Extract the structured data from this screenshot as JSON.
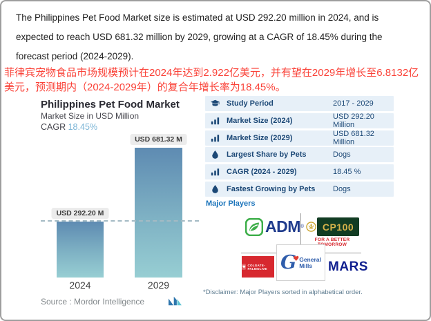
{
  "intro": {
    "en": "The Philippines Pet Food Market size is estimated at USD 292.20 million in 2024, and is expected to reach USD 681.32 million by 2029, growing at a CAGR of 18.45% during the forecast period (2024-2029).",
    "zh": "菲律宾宠物食品市场规模预计在2024年达到2.922亿美元，并有望在2029年增长至6.8132亿美元，预测期内（2024-2029年）的复合年增长率为18.45%。"
  },
  "chart": {
    "title": "Philippines Pet Food Market",
    "subtitle": "Market Size in USD Million",
    "cagr_label": "CAGR",
    "cagr_value": "18.45%",
    "source_label": "Source :  Mordor Intelligence"
  },
  "chart_data": {
    "type": "bar",
    "categories": [
      "2024",
      "2029"
    ],
    "values": [
      292.2,
      681.32
    ],
    "bar_labels": [
      "USD 292.20 M",
      "USD 681.32 M"
    ],
    "title": "Philippines Pet Food Market",
    "ylabel": "Market Size in USD Million",
    "annotations": [
      "dashed reference line at 2024 value"
    ],
    "ylim": [
      0,
      700
    ],
    "grid": false,
    "legend": false
  },
  "stats_table": {
    "rows": [
      {
        "icon": "graduation-cap",
        "label": "Study Period",
        "value": "2017 - 2029"
      },
      {
        "icon": "bar-chart",
        "label": "Market Size (2024)",
        "value": "USD 292.20 Million"
      },
      {
        "icon": "bar-chart",
        "label": "Market Size (2029)",
        "value": "USD 681.32 Million"
      },
      {
        "icon": "droplet",
        "label": "Largest Share by Pets",
        "value": "Dogs"
      },
      {
        "icon": "bar-chart",
        "label": "CAGR (2024 - 2029)",
        "value": "18.45 %"
      },
      {
        "icon": "droplet",
        "label": "Fastest Growing by Pets",
        "value": "Dogs"
      }
    ]
  },
  "major_players": {
    "heading": "Major Players",
    "adm_label": "ADM",
    "cp_label": "CP100",
    "cp_caption": "FOR A BETTER TOMORROW",
    "colgate_label": "COLGATE-PALMOLIVE",
    "gm_label_1": "General",
    "gm_label_2": "Mills",
    "mars_label": "MARS",
    "disclaimer": "*Disclaimer: Major Players sorted in alphabetical order."
  },
  "colors": {
    "accent_blue": "#1b74bb",
    "navy_text": "#1c4876",
    "row_bg": "#e7f0f8",
    "cagr_blue": "#7ab4d6",
    "bar_top": "#5e8bb2",
    "bar_bottom": "#97ced3",
    "red_text": "#fa4238",
    "colgate_red": "#d7282f",
    "cp_green": "#123c23",
    "cp_gold": "#d6b24a",
    "adm_navy": "#1f3b8c",
    "mars_navy": "#101f8f"
  }
}
